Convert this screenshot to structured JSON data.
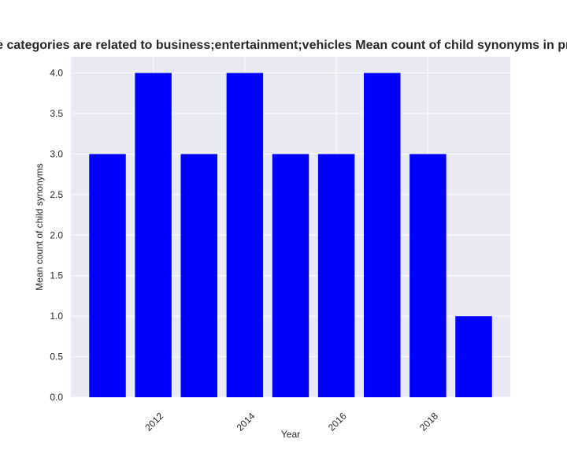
{
  "colors": {
    "plot_background": "#eaeaf2",
    "grid": "#ffffff",
    "bar": "#0000ff",
    "text": "#262626"
  },
  "chart_data": {
    "type": "bar",
    "title": "Apps whose categories are related to business;entertainment;vehicles Mean count of child synonyms in privacy policies",
    "xlabel": "Year",
    "ylabel": "Mean count of child synonyms",
    "x": [
      2011,
      2012,
      2013,
      2014,
      2015,
      2016,
      2017,
      2018,
      2019
    ],
    "values": [
      3,
      4,
      3,
      4,
      3,
      3,
      4,
      3,
      1
    ],
    "x_ticks": [
      2012,
      2014,
      2016,
      2018
    ],
    "x_tick_labels": [
      "2012",
      "2014",
      "2016",
      "2018"
    ],
    "y_ticks": [
      0.0,
      0.5,
      1.0,
      1.5,
      2.0,
      2.5,
      3.0,
      3.5,
      4.0
    ],
    "y_tick_labels": [
      "0.0",
      "0.5",
      "1.0",
      "1.5",
      "2.0",
      "2.5",
      "3.0",
      "3.5",
      "4.0"
    ],
    "ylim": [
      0,
      4.2
    ],
    "xlim": [
      2010.2,
      2019.8
    ],
    "bar_width_years": 0.8,
    "grid": true,
    "style": "seaborn-darkgrid"
  }
}
